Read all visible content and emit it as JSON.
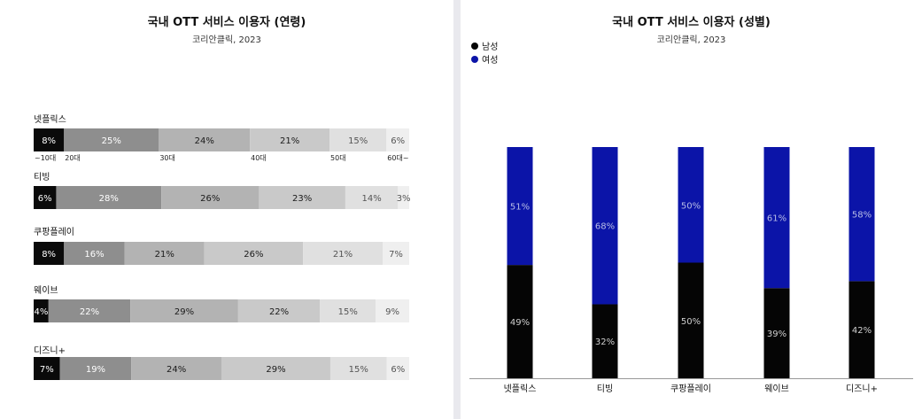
{
  "age_panel": {
    "title": "국내 OTT 서비스 이용자 (연령)",
    "subtitle": "코리안클릭, 2023"
  },
  "gender_panel": {
    "title": "국내 OTT 서비스 이용자 (성별)",
    "subtitle": "코리안클릭, 2023"
  },
  "chart_data": [
    {
      "type": "bar",
      "orientation": "horizontal",
      "stacked": true,
      "title": "국내 OTT 서비스 이용자 (연령)",
      "subtitle": "코리안클릭, 2023",
      "categories": [
        "넷플릭스",
        "티빙",
        "쿠팡플레이",
        "웨이브",
        "디즈니+"
      ],
      "segment_labels": [
        "~10대",
        "20대",
        "30대",
        "40대",
        "50대",
        "60대~"
      ],
      "series": [
        {
          "name": "~10대",
          "color": "#0a0a0a",
          "label_color": "#ffffff",
          "values": [
            8,
            6,
            8,
            4,
            7
          ]
        },
        {
          "name": "20대",
          "color": "#8e8e8e",
          "label_color": "#ffffff",
          "values": [
            25,
            28,
            16,
            22,
            19
          ]
        },
        {
          "name": "30대",
          "color": "#b3b3b3",
          "label_color": "#1a1a1a",
          "values": [
            24,
            26,
            21,
            29,
            24
          ]
        },
        {
          "name": "40대",
          "color": "#c9c9c9",
          "label_color": "#1a1a1a",
          "values": [
            21,
            23,
            26,
            22,
            29
          ]
        },
        {
          "name": "50대",
          "color": "#e0e0e0",
          "label_color": "#555555",
          "values": [
            15,
            14,
            21,
            15,
            15
          ]
        },
        {
          "name": "60대~",
          "color": "#efefef",
          "label_color": "#555555",
          "values": [
            6,
            3,
            7,
            9,
            6
          ]
        }
      ],
      "value_suffix": "%",
      "grid": false
    },
    {
      "type": "bar",
      "orientation": "vertical",
      "stacked": true,
      "percent": true,
      "title": "국내 OTT 서비스 이용자 (성별)",
      "subtitle": "코리안클릭, 2023",
      "categories": [
        "넷플릭스",
        "티빙",
        "쿠팡플레이",
        "웨이브",
        "디즈니+"
      ],
      "series": [
        {
          "name": "남성",
          "color": "#050505",
          "values": [
            49,
            32,
            50,
            39,
            42
          ]
        },
        {
          "name": "여성",
          "color": "#0b14a8",
          "values": [
            51,
            68,
            50,
            61,
            58
          ]
        }
      ],
      "value_suffix": "%",
      "legend": "top-left",
      "grid": false
    }
  ]
}
